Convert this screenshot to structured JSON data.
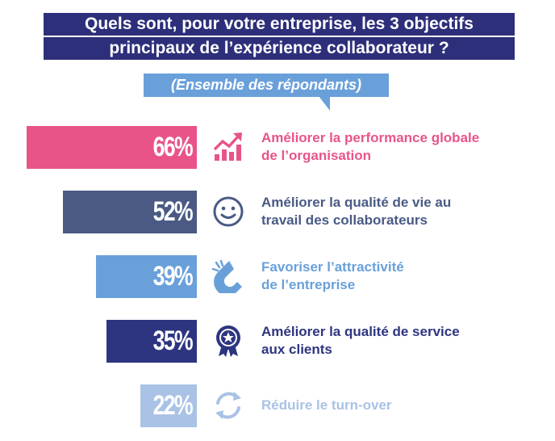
{
  "title": {
    "line1": "Quels sont, pour votre entreprise, les 3 objectifs",
    "line2": "principaux de l’expérience collaborateur ?"
  },
  "subtitle": "(Ensemble des répondants)",
  "chart_data": {
    "type": "bar",
    "orientation": "horizontal",
    "categories": [
      "Améliorer la performance globale de l’organisation",
      "Améliorer la qualité de vie au travail des collaborateurs",
      "Favoriser l’attractivité de l’entreprise",
      "Améliorer la qualité de service aux clients",
      "Réduire le turn-over"
    ],
    "values": [
      66,
      52,
      39,
      35,
      22
    ],
    "value_labels": [
      "66%",
      "52%",
      "39%",
      "35%",
      "22%"
    ],
    "colors": [
      "#e8548a",
      "#4a5a84",
      "#6aa0da",
      "#2e3580",
      "#a9c2e6"
    ],
    "icons": [
      "chart-growth-icon",
      "smiley-icon",
      "magnet-icon",
      "award-ribbon-icon",
      "refresh-cycle-icon"
    ],
    "label_lines": [
      [
        "Améliorer la performance globale",
        "de l’organisation"
      ],
      [
        "Améliorer la qualité de vie au",
        "travail des collaborateurs"
      ],
      [
        "Favoriser l’attractivité",
        "de l’entreprise"
      ],
      [
        "Améliorer la qualité de service",
        "aux clients"
      ],
      [
        "Réduire le turn-over"
      ]
    ],
    "xlim": [
      0,
      66
    ]
  }
}
